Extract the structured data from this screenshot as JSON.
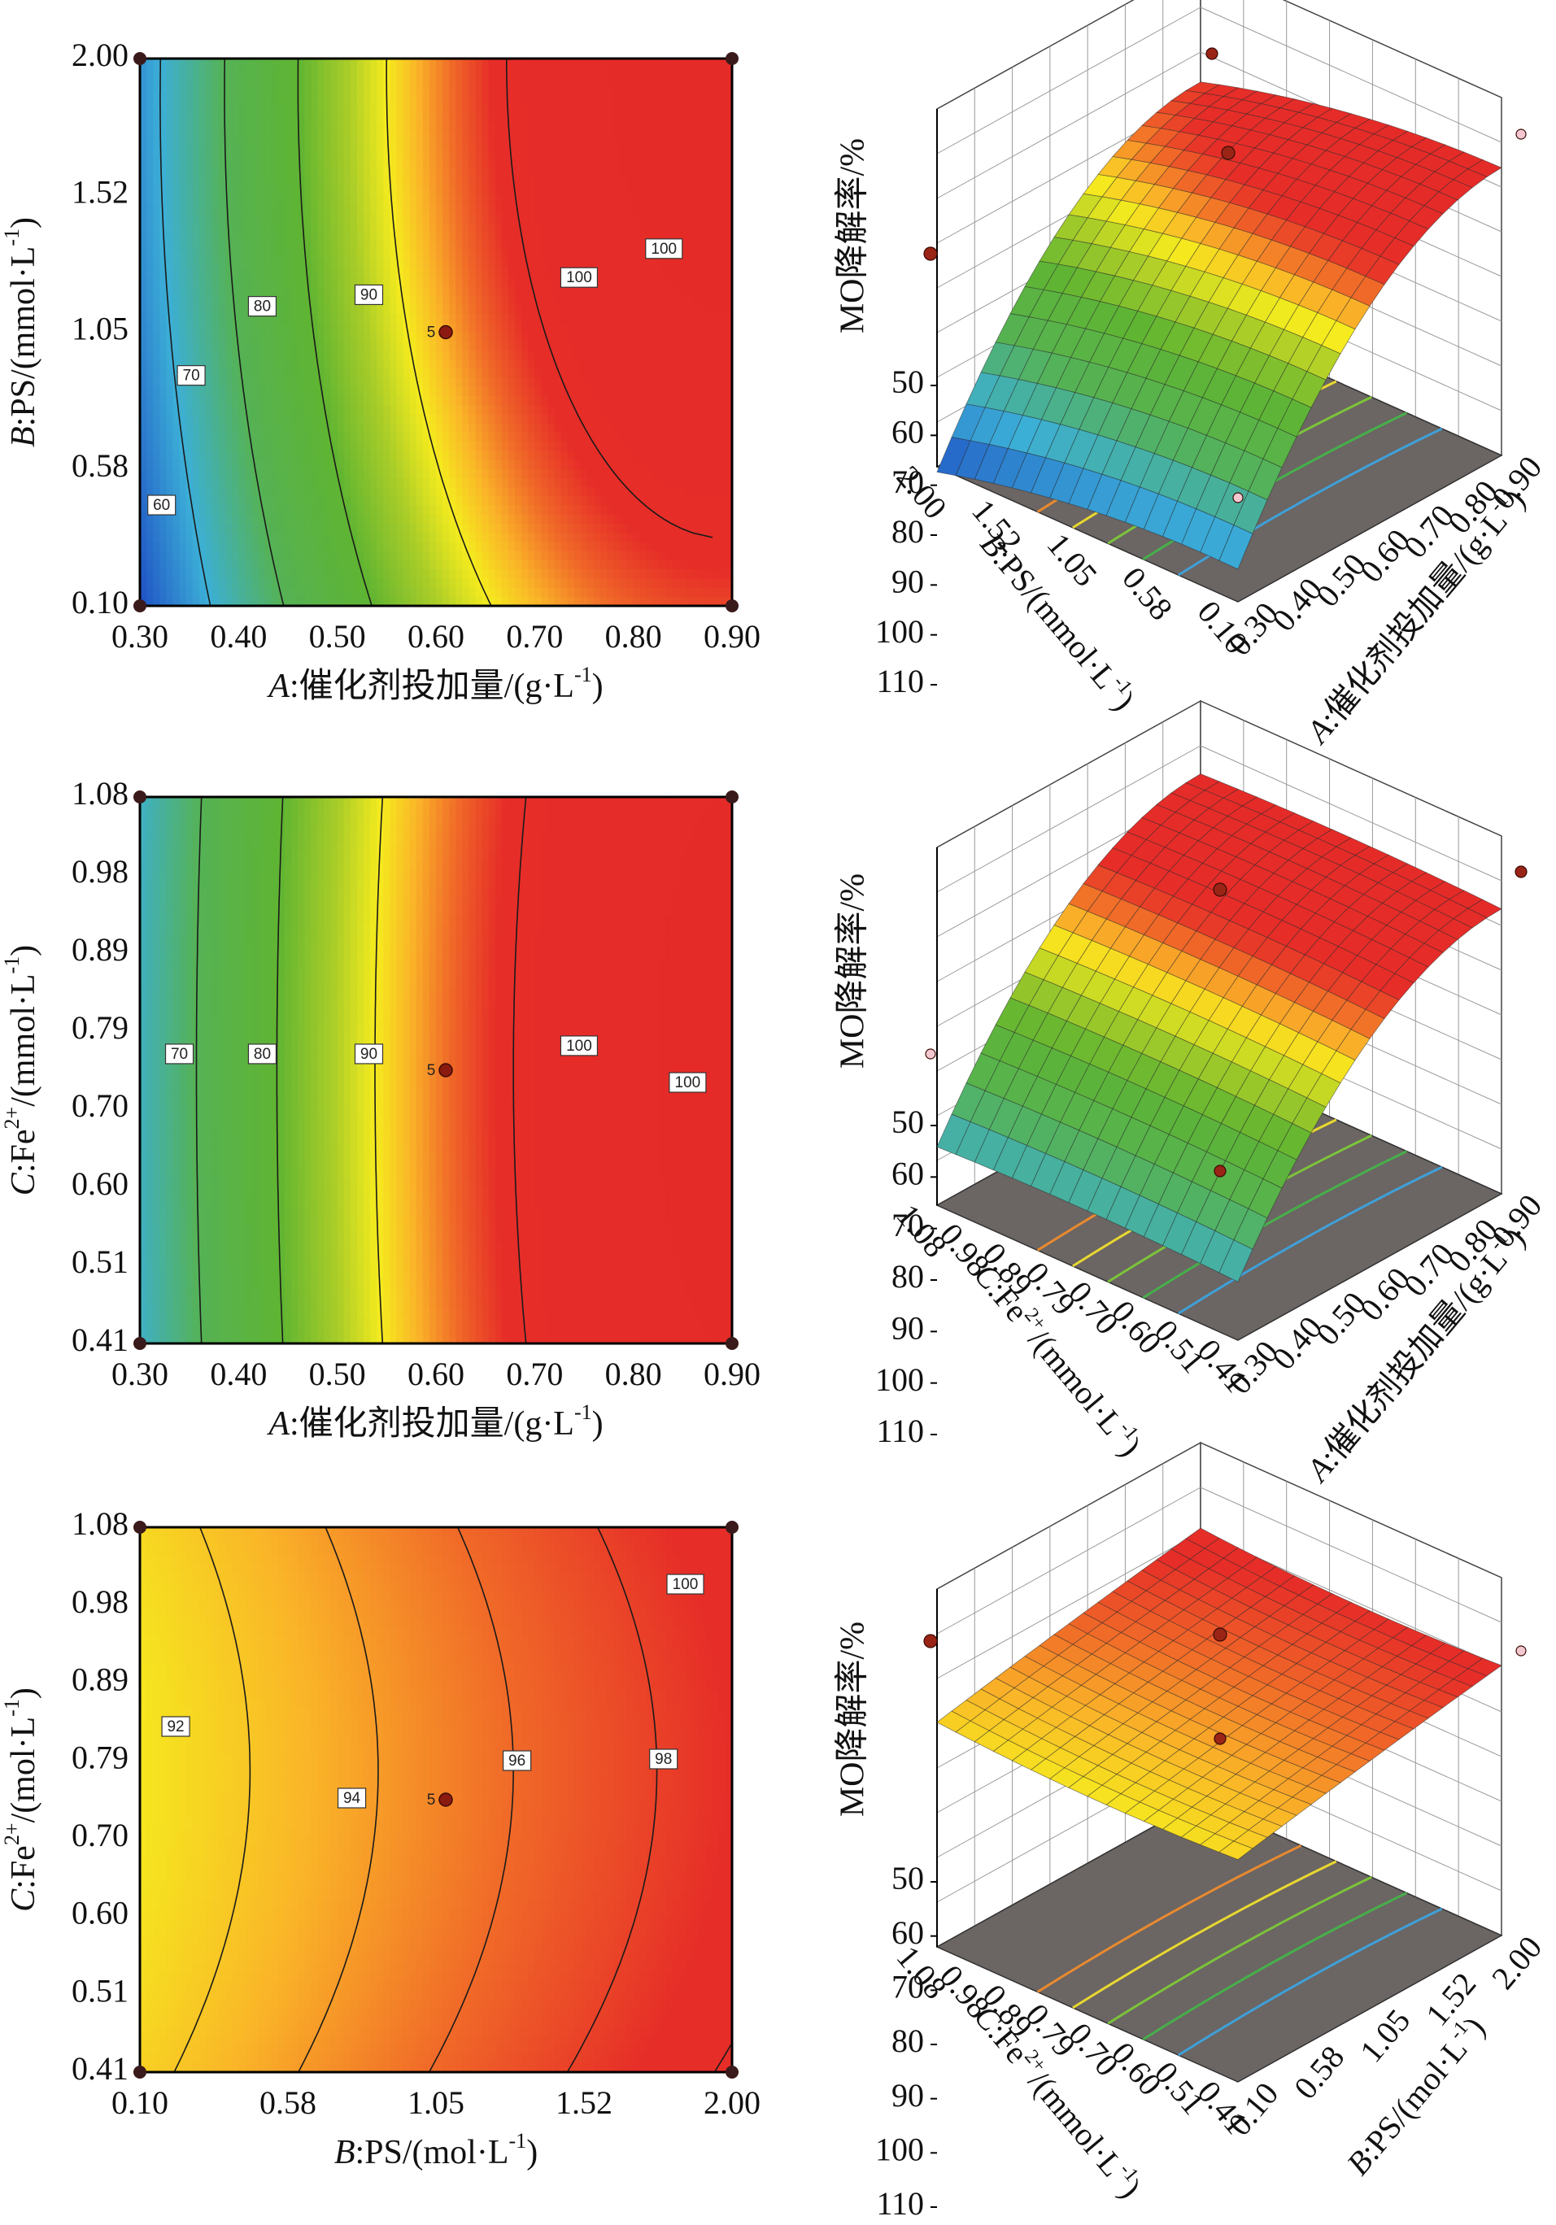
{
  "figure": {
    "response_label": "MO降解率/%"
  },
  "chart_data": [
    {
      "type": "contour",
      "panel": "a-contour",
      "xlabel": {
        "italic": "A",
        "text": ":催化剂投加量/(g·L",
        "sup": "-1",
        "tail": ")"
      },
      "ylabel": {
        "italic": "B",
        "text": ":PS/(mmol·L",
        "sup": "-1",
        "tail": ")"
      },
      "xticks": [
        "0.30",
        "0.40",
        "0.50",
        "0.60",
        "0.70",
        "0.80",
        "0.90"
      ],
      "yticks": [
        "0.10",
        "0.58",
        "1.05",
        "1.52",
        "2.00"
      ],
      "xlim": [
        0.3,
        0.9
      ],
      "ylim": [
        0.1,
        2.0
      ],
      "contour_levels": [
        60,
        70,
        80,
        90,
        100
      ],
      "contour_labels": [
        {
          "text": "60",
          "x": 0.322,
          "y": 0.45
        },
        {
          "text": "70",
          "x": 0.352,
          "y": 0.9
        },
        {
          "text": "80",
          "x": 0.424,
          "y": 1.14
        },
        {
          "text": "90",
          "x": 0.532,
          "y": 1.18
        },
        {
          "text": "100",
          "x": 0.745,
          "y": 1.24
        },
        {
          "text": "100",
          "x": 0.831,
          "y": 1.34
        }
      ],
      "center_point": {
        "label": "5",
        "x": 0.6,
        "y": 1.05
      }
    },
    {
      "type": "surface",
      "panel": "a-surface",
      "zlabel": "MO降解率/%",
      "zticks": [
        "50",
        "60",
        "70",
        "80",
        "90",
        "100",
        "110"
      ],
      "zlim": [
        50,
        110
      ],
      "depth_axis": {
        "italic": "B",
        "text": ":PS/(mmol·L",
        "sup": "-1",
        "tail": ")",
        "ticks": [
          "2.00",
          "1.52",
          "1.05",
          "0.58",
          "0.10"
        ]
      },
      "right_axis": {
        "italic": "A",
        "text": ":催化剂投加量/(g·L",
        "sup": "-1",
        "tail": ")",
        "ticks": [
          "0.30",
          "0.40",
          "0.50",
          "0.60",
          "0.70",
          "0.80",
          "0.90"
        ]
      },
      "response_range": [
        53,
        106
      ]
    },
    {
      "type": "contour",
      "panel": "b-contour",
      "xlabel": {
        "italic": "A",
        "text": ":催化剂投加量/(g·L",
        "sup": "-1",
        "tail": ")"
      },
      "ylabel": {
        "italic": "C",
        "text": ":Fe",
        "sup": "2+",
        "tail": "/(mmol·L",
        "sup2": "-1",
        "tail2": ")"
      },
      "xticks": [
        "0.30",
        "0.40",
        "0.50",
        "0.60",
        "0.70",
        "0.80",
        "0.90"
      ],
      "yticks": [
        "0.41",
        "0.51",
        "0.60",
        "0.70",
        "0.79",
        "0.89",
        "0.98",
        "1.08"
      ],
      "xlim": [
        0.3,
        0.9
      ],
      "ylim": [
        0.41,
        1.08
      ],
      "contour_levels": [
        70,
        80,
        90,
        100
      ],
      "contour_labels": [
        {
          "text": "70",
          "x": 0.34,
          "y": 0.765
        },
        {
          "text": "80",
          "x": 0.424,
          "y": 0.765
        },
        {
          "text": "90",
          "x": 0.532,
          "y": 0.765
        },
        {
          "text": "100",
          "x": 0.745,
          "y": 0.775
        },
        {
          "text": "100",
          "x": 0.855,
          "y": 0.73
        }
      ],
      "center_point": {
        "label": "5",
        "x": 0.6,
        "y": 0.745
      }
    },
    {
      "type": "surface",
      "panel": "b-surface",
      "zlabel": "MO降解率/%",
      "zticks": [
        "50",
        "60",
        "70",
        "80",
        "90",
        "100",
        "110"
      ],
      "zlim": [
        50,
        110
      ],
      "depth_axis": {
        "italic": "C",
        "text": ":Fe",
        "sup": "2+",
        "tail": "/(mmol·L",
        "sup2": "-1",
        "tail2": ")",
        "ticks": [
          "1.08",
          "0.98",
          "0.89",
          "0.79",
          "0.70",
          "0.60",
          "0.51",
          "0.41"
        ]
      },
      "right_axis": {
        "italic": "A",
        "text": ":催化剂投加量/(g·L",
        "sup": "-1",
        "tail": ")",
        "ticks": [
          "0.30",
          "0.40",
          "0.50",
          "0.60",
          "0.70",
          "0.80",
          "0.90"
        ]
      },
      "response_range": [
        63,
        106
      ]
    },
    {
      "type": "contour",
      "panel": "c-contour",
      "xlabel": {
        "italic": "B",
        "text": ":PS/(mol·L",
        "sup": "-1",
        "tail": ")"
      },
      "ylabel": {
        "italic": "C",
        "text": ":Fe",
        "sup": "2+",
        "tail": "/(mol·L",
        "sup2": "-1",
        "tail2": ")"
      },
      "xticks": [
        "0.10",
        "0.58",
        "1.05",
        "1.52",
        "2.00"
      ],
      "yticks": [
        "0.41",
        "0.51",
        "0.60",
        "0.70",
        "0.79",
        "0.89",
        "0.98",
        "1.08"
      ],
      "xlim": [
        0.1,
        2.0
      ],
      "ylim": [
        0.41,
        1.08
      ],
      "contour_levels": [
        92,
        94,
        96,
        98,
        100
      ],
      "contour_labels": [
        {
          "text": "92",
          "x": 0.215,
          "y": 0.835
        },
        {
          "text": "94",
          "x": 0.78,
          "y": 0.747
        },
        {
          "text": "96",
          "x": 1.31,
          "y": 0.793
        },
        {
          "text": "98",
          "x": 1.78,
          "y": 0.795
        },
        {
          "text": "100",
          "x": 1.85,
          "y": 1.01
        }
      ],
      "center_point": {
        "label": "5",
        "x": 1.05,
        "y": 0.745
      }
    },
    {
      "type": "surface",
      "panel": "c-surface",
      "zlabel": "MO降解率/%",
      "zticks": [
        "50",
        "60",
        "70",
        "80",
        "90",
        "100",
        "110"
      ],
      "zlim": [
        50,
        110
      ],
      "depth_axis": {
        "italic": "C",
        "text": ":Fe",
        "sup": "2+",
        "tail": "/(mmol·L",
        "sup2": "-1",
        "tail2": ")",
        "ticks": [
          "1.08",
          "0.98",
          "0.89",
          "0.79",
          "0.70",
          "0.60",
          "0.51",
          "0.41"
        ]
      },
      "right_axis": {
        "italic": "B",
        "text": ":PS/(mol·L",
        "sup": "-1",
        "tail": ")",
        "ticks": [
          "0.10",
          "0.58",
          "1.05",
          "1.52",
          "2.00"
        ]
      },
      "response_range": [
        89,
        101
      ]
    }
  ]
}
